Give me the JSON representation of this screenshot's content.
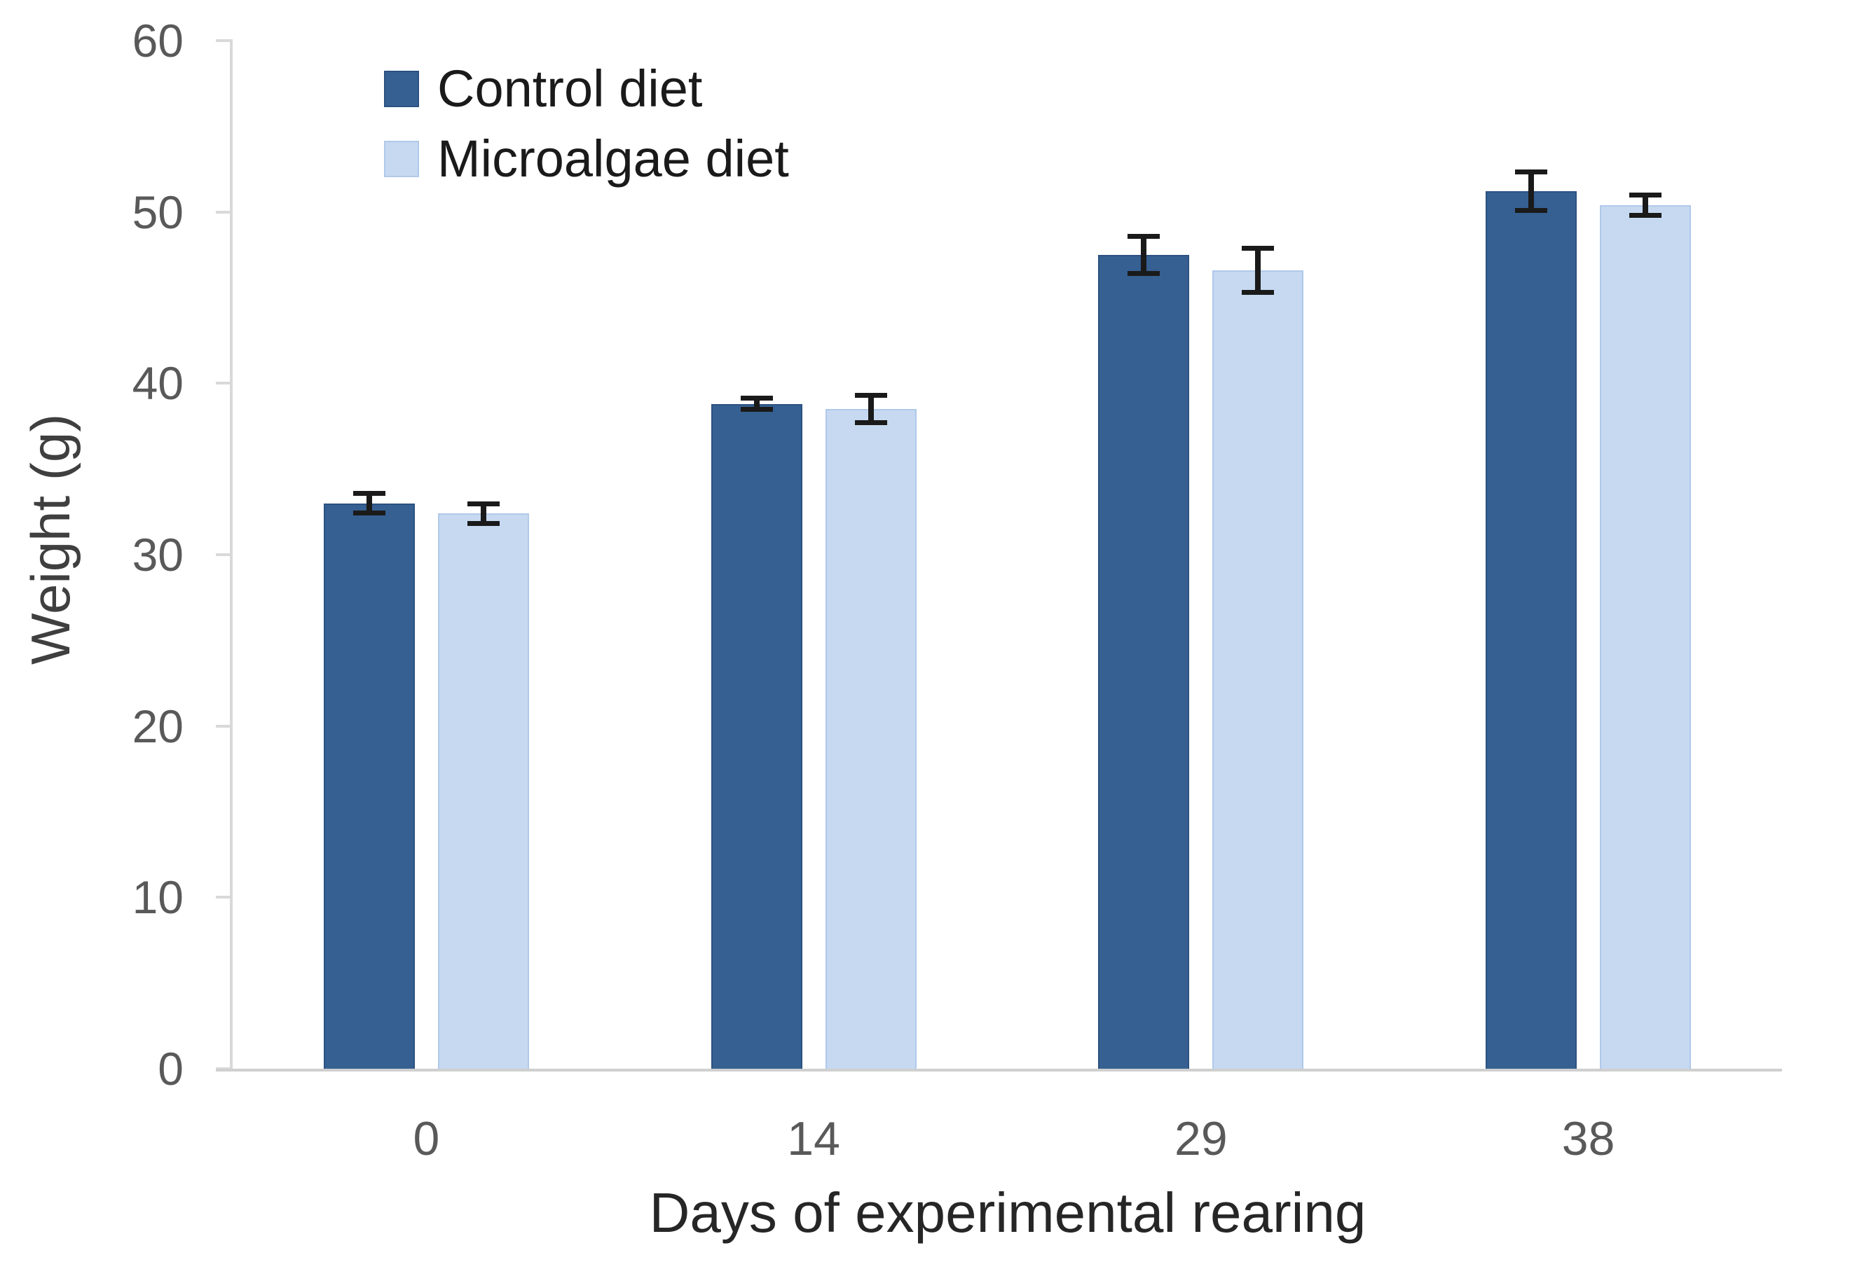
{
  "chart_data": {
    "type": "bar",
    "title": "",
    "xlabel": "Days of experimental rearing",
    "ylabel": "Weight (g)",
    "categories": [
      "0",
      "14",
      "29",
      "38"
    ],
    "series": [
      {
        "name": "Control diet",
        "color": "#366092",
        "border_color": "#2c5181",
        "values": [
          33.0,
          38.8,
          47.5,
          51.2
        ],
        "errors": [
          0.6,
          0.35,
          1.1,
          1.15
        ]
      },
      {
        "name": "Microalgae diet",
        "color": "#c6d9f1",
        "border_color": "#b0c9ea",
        "values": [
          32.4,
          38.5,
          46.6,
          50.4
        ],
        "errors": [
          0.6,
          0.8,
          1.3,
          0.6
        ]
      }
    ],
    "ylim": [
      0,
      60
    ],
    "yticks": [
      0,
      10,
      20,
      30,
      40,
      50,
      60
    ],
    "grid": false,
    "legend_position": "top-left",
    "error_bars": true
  },
  "colors": {
    "background": "#ffffff",
    "axis_line": "#d9d9d9",
    "baseline": "#cfcfcf",
    "tick_label": "#595959",
    "category_label": "#595959",
    "x_title": "#262626",
    "y_title": "#3f3f3f",
    "legend_text": "#1a1a1a",
    "error_bar": "#1a1a1a"
  }
}
